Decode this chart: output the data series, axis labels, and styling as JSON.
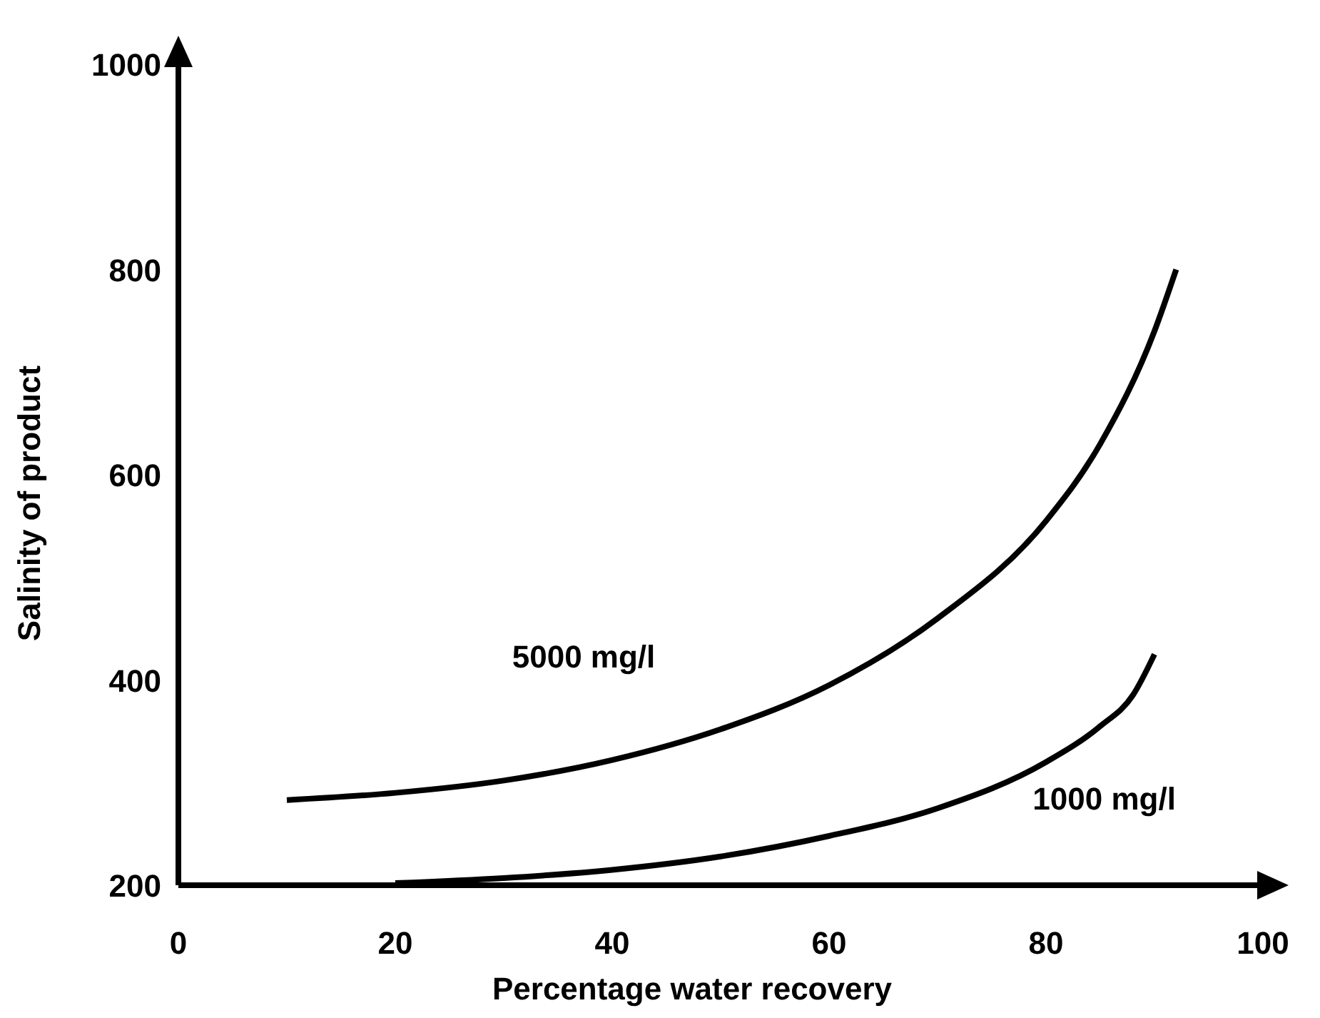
{
  "chart_data": {
    "type": "line",
    "xlabel": "Percentage water recovery",
    "ylabel": "Salinity of product",
    "xlim": [
      0,
      100
    ],
    "ylim": [
      200,
      1000
    ],
    "xticks": [
      0,
      20,
      40,
      60,
      80,
      100
    ],
    "yticks": [
      200,
      400,
      600,
      800,
      1000
    ],
    "grid": false,
    "marker": "none",
    "line_style": "solid",
    "series": [
      {
        "name": "5000 mg/l",
        "color": "#000000",
        "x": [
          10,
          20,
          30,
          40,
          50,
          60,
          70,
          80,
          85,
          90,
          92
        ],
        "values": [
          283,
          290,
          302,
          322,
          352,
          395,
          460,
          555,
          630,
          740,
          800
        ]
      },
      {
        "name": "1000 mg/l",
        "color": "#000000",
        "x": [
          20,
          30,
          40,
          50,
          60,
          70,
          80,
          85,
          88,
          90
        ],
        "values": [
          202,
          207,
          215,
          228,
          248,
          275,
          320,
          355,
          385,
          425
        ]
      }
    ]
  }
}
